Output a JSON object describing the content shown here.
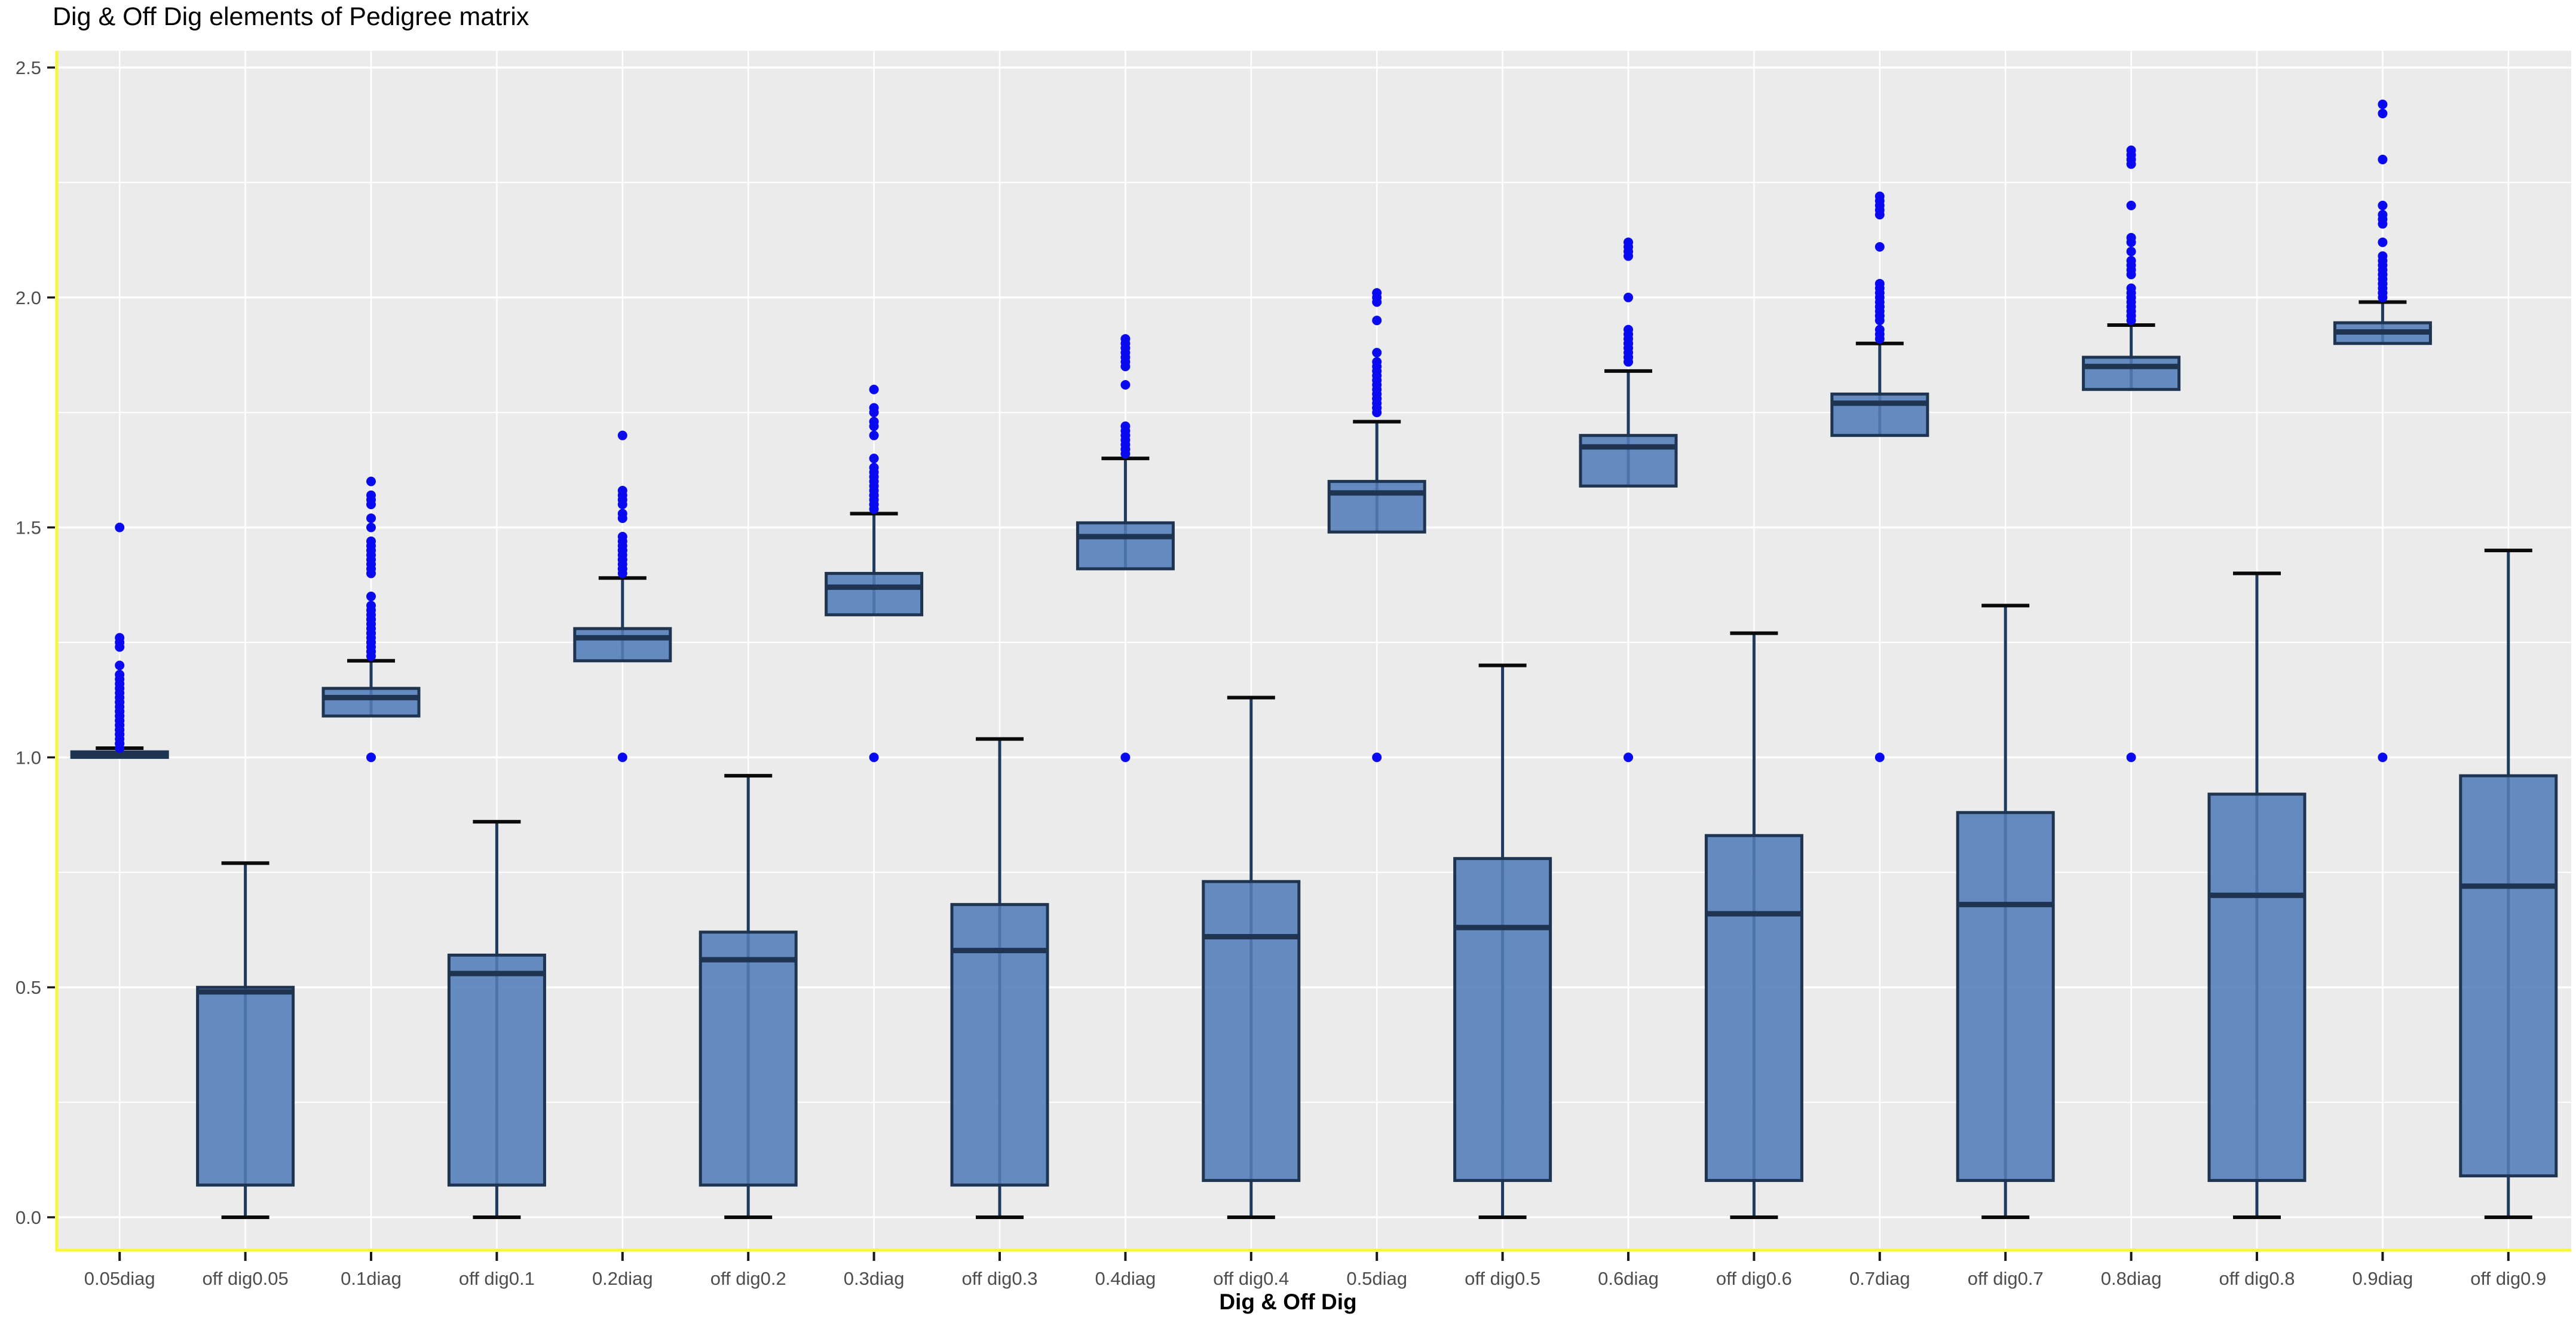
{
  "title": "Dig & Off Dig elements of Pedigree matrix",
  "style": {
    "page_bg": "#ffffff",
    "panel_bg": "#ebebeb",
    "grid_color": "#ffffff",
    "axis_line_color": "#f8f83a",
    "tick_color": "#1a1a1a",
    "tick_label_color": "#4d4d4d",
    "box_fill": "#527cb8",
    "box_border": "#1e3450",
    "median_color": "#1e3450",
    "whisker_color": "#1e3a5f",
    "cap_color": "#0a0a0a",
    "outlier_color": "#0a0af0"
  },
  "axes": {
    "y_ticks": [
      0.0,
      0.5,
      1.0,
      1.5,
      2.0,
      2.5
    ],
    "y_tick_labels": [
      "0.0",
      "0.5",
      "1.0",
      "1.5",
      "2.0",
      "2.5"
    ],
    "y_minor_ticks": [
      0.25,
      0.75,
      1.25,
      1.75,
      2.25
    ],
    "x_title": "Dig & Off Dig"
  },
  "chart_data": {
    "type": "boxplot",
    "title": "Dig & Off Dig elements of Pedigree matrix",
    "xlabel": "Dig & Off Dig",
    "ylabel": "",
    "ylim": [
      -0.07,
      2.535
    ],
    "grid": true,
    "legend": "none",
    "categories": [
      "0.05diag",
      "off dig0.05",
      "0.1diag",
      "off dig0.1",
      "0.2diag",
      "off dig0.2",
      "0.3diag",
      "off dig0.3",
      "0.4diag",
      "off dig0.4",
      "0.5diag",
      "off dig0.5",
      "0.6diag",
      "off dig0.6",
      "0.7diag",
      "off dig0.7",
      "0.8diag",
      "off dig0.8",
      "0.9diag",
      "off dig0.9"
    ],
    "boxes": [
      {
        "label": "0.05diag",
        "group": "diag",
        "q1": 1.0,
        "median": 1.004,
        "q3": 1.012,
        "whisker_low": 1.0,
        "whisker_high": 1.02,
        "outliers": [
          1.02,
          1.03,
          1.03,
          1.04,
          1.05,
          1.05,
          1.06,
          1.06,
          1.07,
          1.07,
          1.08,
          1.08,
          1.09,
          1.09,
          1.1,
          1.1,
          1.11,
          1.12,
          1.12,
          1.13,
          1.14,
          1.15,
          1.16,
          1.17,
          1.18,
          1.2,
          1.24,
          1.25,
          1.26,
          1.5
        ]
      },
      {
        "label": "off dig0.05",
        "group": "offdig",
        "q1": 0.07,
        "median": 0.49,
        "q3": 0.5,
        "whisker_low": 0.0,
        "whisker_high": 0.77,
        "outliers": []
      },
      {
        "label": "0.1diag",
        "group": "diag",
        "q1": 1.09,
        "median": 1.13,
        "q3": 1.15,
        "whisker_low": 1.09,
        "whisker_high": 1.21,
        "outliers": [
          1.0,
          1.22,
          1.23,
          1.23,
          1.24,
          1.25,
          1.25,
          1.26,
          1.27,
          1.27,
          1.28,
          1.29,
          1.3,
          1.3,
          1.31,
          1.32,
          1.33,
          1.35,
          1.4,
          1.41,
          1.42,
          1.43,
          1.44,
          1.45,
          1.46,
          1.47,
          1.5,
          1.52,
          1.55,
          1.56,
          1.57,
          1.6
        ]
      },
      {
        "label": "off dig0.1",
        "group": "offdig",
        "q1": 0.07,
        "median": 0.53,
        "q3": 0.57,
        "whisker_low": 0.0,
        "whisker_high": 0.86,
        "outliers": []
      },
      {
        "label": "0.2diag",
        "group": "diag",
        "q1": 1.21,
        "median": 1.26,
        "q3": 1.28,
        "whisker_low": 1.21,
        "whisker_high": 1.39,
        "outliers": [
          1.0,
          1.4,
          1.41,
          1.41,
          1.42,
          1.43,
          1.43,
          1.44,
          1.45,
          1.45,
          1.46,
          1.47,
          1.48,
          1.52,
          1.53,
          1.55,
          1.56,
          1.57,
          1.58,
          1.7
        ]
      },
      {
        "label": "off dig0.2",
        "group": "offdig",
        "q1": 0.07,
        "median": 0.56,
        "q3": 0.62,
        "whisker_low": 0.0,
        "whisker_high": 0.96,
        "outliers": []
      },
      {
        "label": "0.3diag",
        "group": "diag",
        "q1": 1.31,
        "median": 1.37,
        "q3": 1.4,
        "whisker_low": 1.31,
        "whisker_high": 1.53,
        "outliers": [
          1.0,
          1.54,
          1.55,
          1.55,
          1.56,
          1.57,
          1.57,
          1.58,
          1.59,
          1.6,
          1.61,
          1.62,
          1.63,
          1.65,
          1.7,
          1.72,
          1.73,
          1.75,
          1.76,
          1.8
        ]
      },
      {
        "label": "off dig0.3",
        "group": "offdig",
        "q1": 0.07,
        "median": 0.58,
        "q3": 0.68,
        "whisker_low": 0.0,
        "whisker_high": 1.04,
        "outliers": []
      },
      {
        "label": "0.4diag",
        "group": "diag",
        "q1": 1.41,
        "median": 1.48,
        "q3": 1.51,
        "whisker_low": 1.41,
        "whisker_high": 1.65,
        "outliers": [
          1.0,
          1.66,
          1.67,
          1.67,
          1.68,
          1.69,
          1.7,
          1.7,
          1.71,
          1.72,
          1.81,
          1.85,
          1.86,
          1.87,
          1.88,
          1.89,
          1.9,
          1.91
        ]
      },
      {
        "label": "off dig0.4",
        "group": "offdig",
        "q1": 0.08,
        "median": 0.61,
        "q3": 0.73,
        "whisker_low": 0.0,
        "whisker_high": 1.13,
        "outliers": []
      },
      {
        "label": "0.5diag",
        "group": "diag",
        "q1": 1.49,
        "median": 1.575,
        "q3": 1.6,
        "whisker_low": 1.49,
        "whisker_high": 1.73,
        "outliers": [
          1.0,
          1.75,
          1.76,
          1.76,
          1.77,
          1.78,
          1.78,
          1.79,
          1.8,
          1.81,
          1.82,
          1.83,
          1.84,
          1.85,
          1.86,
          1.88,
          1.95,
          1.99,
          2.0,
          2.01
        ]
      },
      {
        "label": "off dig0.5",
        "group": "offdig",
        "q1": 0.08,
        "median": 0.63,
        "q3": 0.78,
        "whisker_low": 0.0,
        "whisker_high": 1.2,
        "outliers": []
      },
      {
        "label": "0.6diag",
        "group": "diag",
        "q1": 1.59,
        "median": 1.675,
        "q3": 1.7,
        "whisker_low": 1.59,
        "whisker_high": 1.84,
        "outliers": [
          1.0,
          1.86,
          1.87,
          1.87,
          1.88,
          1.89,
          1.9,
          1.9,
          1.91,
          1.92,
          1.93,
          2.0,
          2.09,
          2.1,
          2.11,
          2.12
        ]
      },
      {
        "label": "off dig0.6",
        "group": "offdig",
        "q1": 0.08,
        "median": 0.66,
        "q3": 0.83,
        "whisker_low": 0.0,
        "whisker_high": 1.27,
        "outliers": []
      },
      {
        "label": "0.7diag",
        "group": "diag",
        "q1": 1.7,
        "median": 1.77,
        "q3": 1.79,
        "whisker_low": 1.7,
        "whisker_high": 1.9,
        "outliers": [
          1.0,
          1.91,
          1.92,
          1.93,
          1.95,
          1.96,
          1.96,
          1.97,
          1.98,
          1.98,
          1.99,
          2.0,
          2.01,
          2.02,
          2.03,
          2.11,
          2.18,
          2.19,
          2.2,
          2.21,
          2.22
        ]
      },
      {
        "label": "off dig0.7",
        "group": "offdig",
        "q1": 0.08,
        "median": 0.68,
        "q3": 0.88,
        "whisker_low": 0.0,
        "whisker_high": 1.33,
        "outliers": []
      },
      {
        "label": "0.8diag",
        "group": "diag",
        "q1": 1.8,
        "median": 1.85,
        "q3": 1.87,
        "whisker_low": 1.8,
        "whisker_high": 1.94,
        "outliers": [
          1.0,
          1.95,
          1.96,
          1.96,
          1.97,
          1.98,
          1.99,
          2.0,
          2.0,
          2.01,
          2.02,
          2.05,
          2.06,
          2.07,
          2.08,
          2.1,
          2.12,
          2.13,
          2.2,
          2.29,
          2.3,
          2.31,
          2.32
        ]
      },
      {
        "label": "off dig0.8",
        "group": "offdig",
        "q1": 0.08,
        "median": 0.7,
        "q3": 0.92,
        "whisker_low": 0.0,
        "whisker_high": 1.4,
        "outliers": []
      },
      {
        "label": "0.9diag",
        "group": "diag",
        "q1": 1.9,
        "median": 1.925,
        "q3": 1.945,
        "whisker_low": 1.9,
        "whisker_high": 1.99,
        "outliers": [
          1.0,
          2.0,
          2.01,
          2.01,
          2.02,
          2.03,
          2.03,
          2.04,
          2.05,
          2.05,
          2.06,
          2.07,
          2.08,
          2.09,
          2.12,
          2.16,
          2.17,
          2.18,
          2.2,
          2.3,
          2.4,
          2.42
        ]
      },
      {
        "label": "off dig0.9",
        "group": "offdig",
        "q1": 0.09,
        "median": 0.72,
        "q3": 0.96,
        "whisker_low": 0.0,
        "whisker_high": 1.45,
        "outliers": []
      }
    ]
  }
}
